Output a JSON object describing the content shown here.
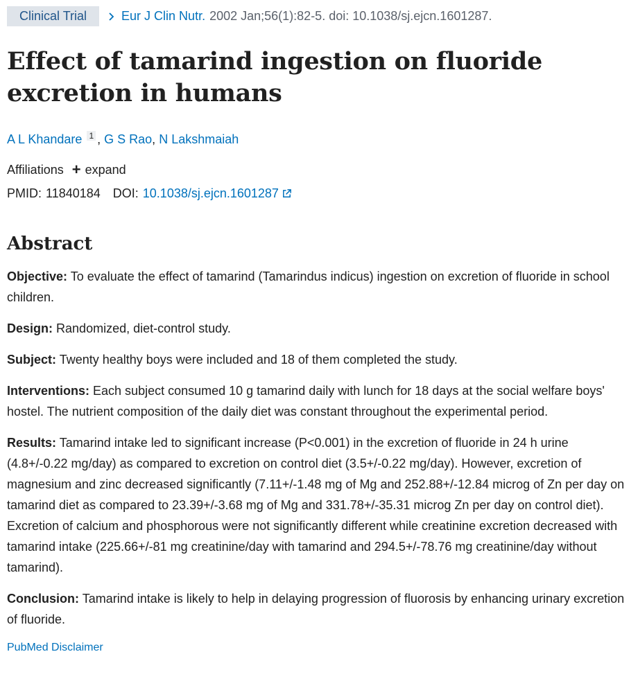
{
  "header": {
    "tag": "Clinical Trial",
    "journal": "Eur J Clin Nutr.",
    "citation": "2002 Jan;56(1):82-5. doi: 10.1038/sj.ejcn.1601287."
  },
  "title": "Effect of tamarind ingestion on fluoride excretion in humans",
  "authors": [
    {
      "name": "A L Khandare",
      "affiliation_ref": "1"
    },
    {
      "name": "G S Rao"
    },
    {
      "name": "N Lakshmaiah"
    }
  ],
  "affiliations": {
    "label": "Affiliations",
    "expand_label": "expand"
  },
  "identifiers": {
    "pmid_label": "PMID:",
    "pmid": "11840184",
    "doi_label": "DOI:",
    "doi": "10.1038/sj.ejcn.1601287"
  },
  "abstract": {
    "heading": "Abstract",
    "sections": [
      {
        "label": "Objective:",
        "text": "To evaluate the effect of tamarind (Tamarindus indicus) ingestion on excretion of fluoride in school children."
      },
      {
        "label": "Design:",
        "text": "Randomized, diet-control study."
      },
      {
        "label": "Subject:",
        "text": "Twenty healthy boys were included and 18 of them completed the study."
      },
      {
        "label": "Interventions:",
        "text": "Each subject consumed 10 g tamarind daily with lunch for 18 days at the social welfare boys' hostel. The nutrient composition of the daily diet was constant throughout the experimental period."
      },
      {
        "label": "Results:",
        "text": "Tamarind intake led to significant increase (P<0.001) in the excretion of fluoride in 24 h urine (4.8+/-0.22 mg/day) as compared to excretion on control diet (3.5+/-0.22 mg/day). However, excretion of magnesium and zinc decreased significantly (7.11+/-1.48 mg of Mg and 252.88+/-12.84 microg of Zn per day on tamarind diet as compared to 23.39+/-3.68 mg of Mg and 331.78+/-35.31 microg Zn per day on control diet). Excretion of calcium and phosphorous were not significantly different while creatinine excretion decreased with tamarind intake (225.66+/-81 mg creatinine/day with tamarind and 294.5+/-78.76 mg creatinine/day without tamarind)."
      },
      {
        "label": "Conclusion:",
        "text": "Tamarind intake is likely to help in delaying progression of fluorosis by enhancing urinary excretion of fluoride."
      }
    ]
  },
  "disclaimer": "PubMed Disclaimer",
  "colors": {
    "link": "#0071bc",
    "tag_bg": "#dfe4ea",
    "text": "#212121"
  }
}
